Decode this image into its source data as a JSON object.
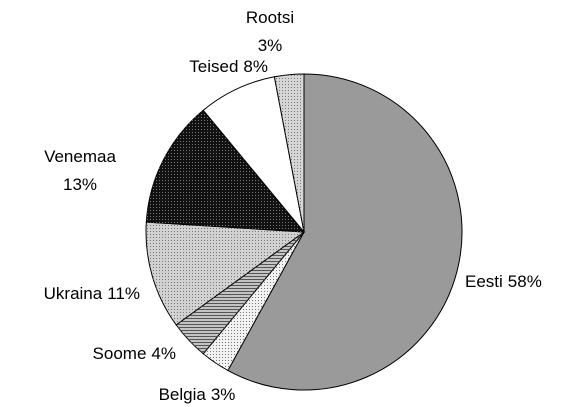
{
  "chart_data": {
    "type": "pie",
    "categories": [
      "Eesti",
      "Belgia",
      "Soome",
      "Ukraina",
      "Venemaa",
      "Teised",
      "Rootsi"
    ],
    "values": [
      58,
      3,
      4,
      11,
      13,
      8,
      3
    ],
    "value_labels": [
      "58%",
      "3%",
      "4%",
      "11%",
      "13%",
      "8%",
      "3%"
    ],
    "colors": [
      "#9a9a9a",
      "#f2f2f2",
      "#c4c4c4",
      "#d2d2d2",
      "#111111",
      "#ffffff",
      "#d6d6d6"
    ]
  }
}
